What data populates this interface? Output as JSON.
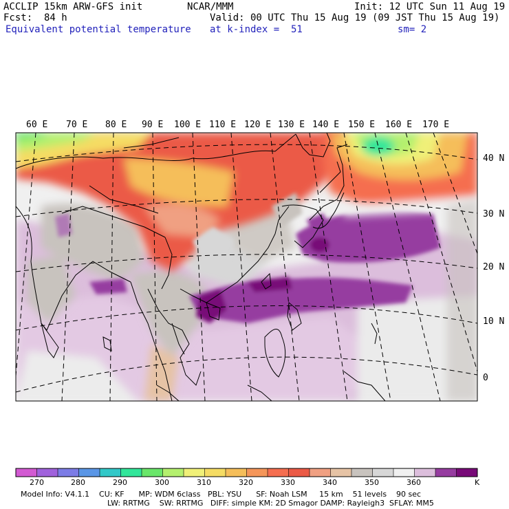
{
  "header": {
    "model": "ACCLIP 15km ARW-GFS init",
    "org": "NCAR/MMM",
    "init": "Init: 12 UTC Sun 11 Aug 19",
    "fcst_label": "Fcst:",
    "fcst_value": "84 h",
    "valid": "Valid: 00 UTC Thu 15 Aug 19 (09 JST Thu 15 Aug 19)",
    "field": "Equivalent potential temperature",
    "level": "at k-index =  51",
    "smooth": "sm= 2"
  },
  "map": {
    "lon_labels": [
      "60 E",
      "70 E",
      "80 E",
      "90 E",
      "100 E",
      "110 E",
      "120 E",
      "130 E",
      "140 E",
      "150 E",
      "160 E",
      "170 E"
    ],
    "lat_labels": [
      "40 N",
      "30 N",
      "20 N",
      "10 N",
      "0"
    ]
  },
  "colorbar": {
    "unit": "K",
    "tick_labels": [
      "270",
      "280",
      "290",
      "300",
      "310",
      "320",
      "330",
      "340",
      "350",
      "360"
    ],
    "colors": [
      "#d25ad2",
      "#a062dc",
      "#7c7ce6",
      "#5a96e6",
      "#32c8c8",
      "#32e69a",
      "#6ae66a",
      "#b4f06e",
      "#f0f078",
      "#f5dc64",
      "#f5be5a",
      "#f5965a",
      "#f56e50",
      "#eb5a46",
      "#f0a082",
      "#e6c3a5",
      "#c8c3be",
      "#d7d7d7",
      "#f0f0f0",
      "#dcbedc",
      "#963ca0",
      "#780a78"
    ]
  },
  "footer": {
    "line1": "Model Info: V4.1.1    CU: KF      MP: WDM 6class   PBL: YSU      SF: Noah LSM     15 km    51 levels    90 sec",
    "line2": "LW: RRTMG    SW: RRTMG   DIFF: simple KM: 2D Smagor DAMP: Rayleigh3  SFLAY: MM5"
  }
}
